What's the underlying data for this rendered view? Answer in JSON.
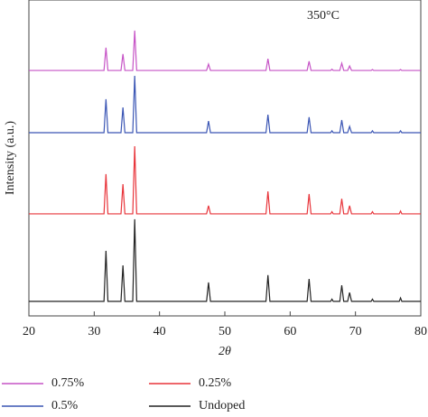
{
  "chart_data": {
    "type": "line",
    "annotation": "350°C",
    "xlabel": "2θ",
    "ylabel": "Intensity (a.u.)",
    "xlim": [
      20,
      80
    ],
    "xticks": [
      20,
      30,
      40,
      50,
      60,
      70,
      80
    ],
    "ylim": [
      0,
      100
    ],
    "x": [
      20,
      31.5,
      31.8,
      32.1,
      34.1,
      34.4,
      34.7,
      35.9,
      36.2,
      36.5,
      47.2,
      47.5,
      47.8,
      56.3,
      56.6,
      56.9,
      62.6,
      62.9,
      63.2,
      66.2,
      66.4,
      66.6,
      67.6,
      67.9,
      68.2,
      68.8,
      69.1,
      69.4,
      72.4,
      72.6,
      72.8,
      76.7,
      76.9,
      77.1,
      80
    ],
    "series": [
      {
        "name": "0.75%",
        "color": "#c653c6",
        "values": [
          77.7,
          77.7,
          84.9,
          77.7,
          77.7,
          82.9,
          77.7,
          77.7,
          90.3,
          77.7,
          77.7,
          79.7,
          77.7,
          77.7,
          81.4,
          77.7,
          77.7,
          80.6,
          77.7,
          77.7,
          78.1,
          77.7,
          77.7,
          80,
          77.7,
          77.7,
          79.1,
          77.7,
          77.7,
          78,
          77.7,
          77.7,
          78,
          77.7,
          77.7
        ]
      },
      {
        "name": "0.5%",
        "color": "#3a55b4",
        "values": [
          58,
          58,
          68.6,
          58,
          58,
          66,
          58,
          58,
          76,
          58,
          58,
          61.7,
          58,
          58,
          63.7,
          58,
          58,
          62.9,
          58,
          58,
          58.6,
          58,
          58,
          62,
          58,
          58,
          60,
          58,
          58,
          58.6,
          58,
          58,
          58.6,
          58,
          58
        ]
      },
      {
        "name": "0.25%",
        "color": "#e8343a",
        "values": [
          32.3,
          32.3,
          44.9,
          32.3,
          32.3,
          41.7,
          32.3,
          32.3,
          53.7,
          32.3,
          32.3,
          34.9,
          32.3,
          32.3,
          39.4,
          32.3,
          32.3,
          38.6,
          32.3,
          32.3,
          33,
          32.3,
          32.3,
          37.1,
          32.3,
          32.3,
          34.9,
          32.3,
          32.3,
          33,
          32.3,
          32.3,
          33.2,
          32.3,
          32.3
        ]
      },
      {
        "name": "Undoped",
        "color": "#222222",
        "values": [
          4.6,
          4.6,
          20.6,
          4.6,
          4.6,
          16,
          4.6,
          4.6,
          30.6,
          4.6,
          4.6,
          10.6,
          4.6,
          4.6,
          12.9,
          4.6,
          4.6,
          11.7,
          4.6,
          4.6,
          5.3,
          4.6,
          4.6,
          9.7,
          4.6,
          4.6,
          7.4,
          4.6,
          4.6,
          5.3,
          4.6,
          4.6,
          5.7,
          4.6,
          4.6
        ]
      }
    ]
  }
}
